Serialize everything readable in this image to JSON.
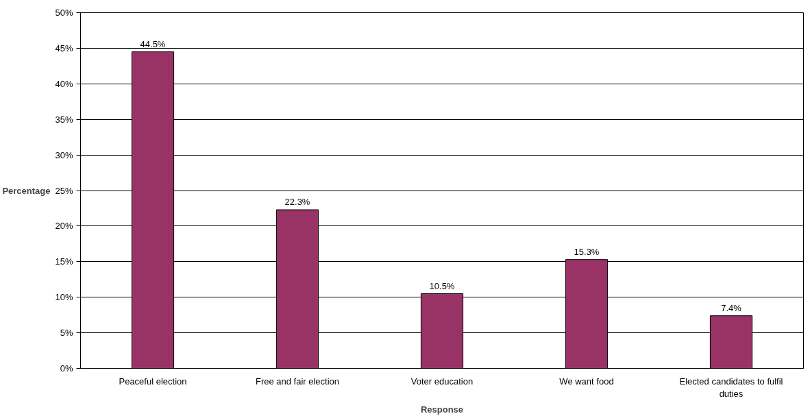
{
  "chart_data": {
    "type": "bar",
    "xlabel": "Response",
    "ylabel": "Percentage",
    "categories": [
      "Peaceful election",
      "Free and fair election",
      "Voter education",
      "We want food",
      "Elected candidates to fulfil duties"
    ],
    "values": [
      44.5,
      22.3,
      10.5,
      15.3,
      7.4
    ],
    "value_labels": [
      "44.5%",
      "22.3%",
      "10.5%",
      "15.3%",
      "7.4%"
    ],
    "color": "#993366",
    "ylim": [
      0,
      50
    ],
    "yticks": [
      {
        "value": 0,
        "label": "0%"
      },
      {
        "value": 5,
        "label": "5%"
      },
      {
        "value": 10,
        "label": "10%"
      },
      {
        "value": 15,
        "label": "15%"
      },
      {
        "value": 20,
        "label": "20%"
      },
      {
        "value": 25,
        "label": "25%"
      },
      {
        "value": 30,
        "label": "30%"
      },
      {
        "value": 35,
        "label": "35%"
      },
      {
        "value": 40,
        "label": "40%"
      },
      {
        "value": 45,
        "label": "45%"
      },
      {
        "value": 50,
        "label": "50%"
      }
    ],
    "grid": "y"
  }
}
